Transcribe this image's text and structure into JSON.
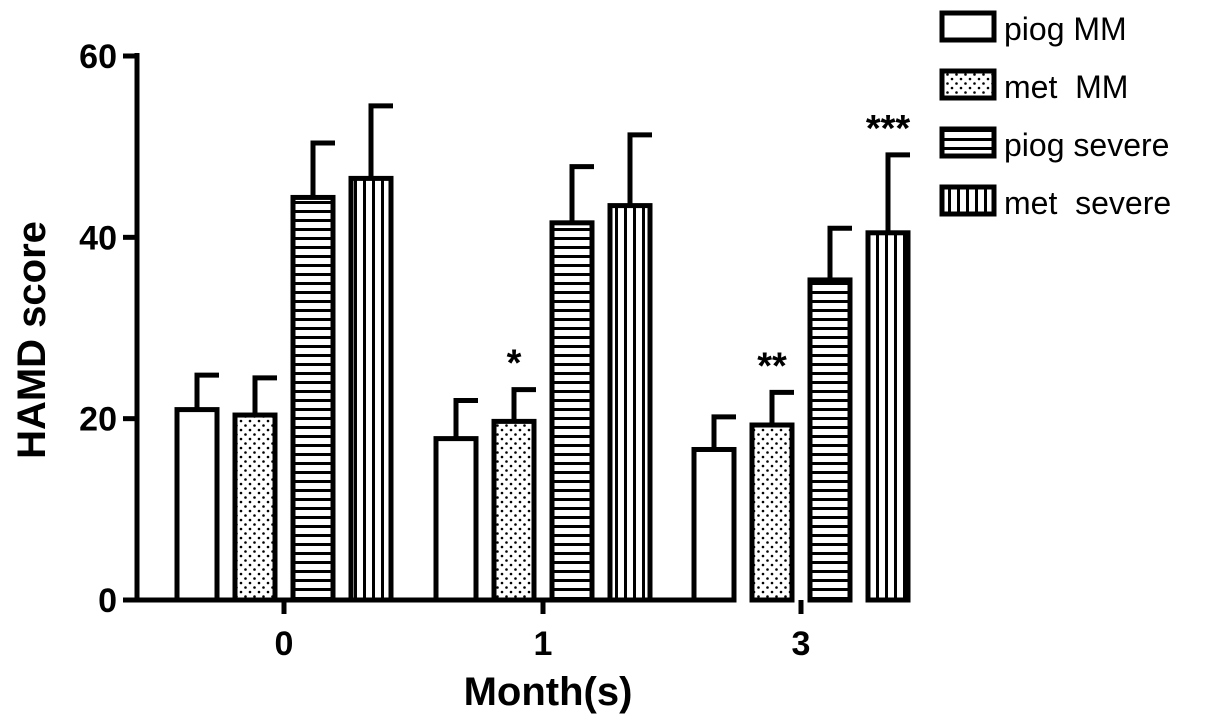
{
  "chart_data": {
    "type": "bar",
    "xlabel": "Month(s)",
    "ylabel": "HAMD score",
    "ylim": [
      0,
      60
    ],
    "yticks": [
      0,
      20,
      40,
      60
    ],
    "categories": [
      "0",
      "1",
      "3"
    ],
    "legend_position": "top-right",
    "series": [
      {
        "name": "piog MM",
        "pattern": "none",
        "values": [
          21,
          17.8,
          16.6
        ],
        "errors": [
          3.8,
          4.2,
          3.6
        ]
      },
      {
        "name": "met  MM",
        "pattern": "dots",
        "values": [
          20.4,
          19.7,
          19.3
        ],
        "errors": [
          4.1,
          3.5,
          3.6
        ]
      },
      {
        "name": "piog severe",
        "pattern": "horizontal",
        "values": [
          44.4,
          41.6,
          35.3
        ],
        "errors": [
          6.0,
          6.2,
          5.7
        ]
      },
      {
        "name": "met  severe",
        "pattern": "vertical",
        "values": [
          46.5,
          43.5,
          40.5
        ],
        "errors": [
          8.0,
          7.8,
          8.6
        ]
      }
    ],
    "annotations": [
      {
        "text": "*",
        "category": "1",
        "series": "met  MM"
      },
      {
        "text": "**",
        "category": "3",
        "series": "met  MM"
      },
      {
        "text": "***",
        "category": "3",
        "series": "met  severe"
      }
    ]
  }
}
